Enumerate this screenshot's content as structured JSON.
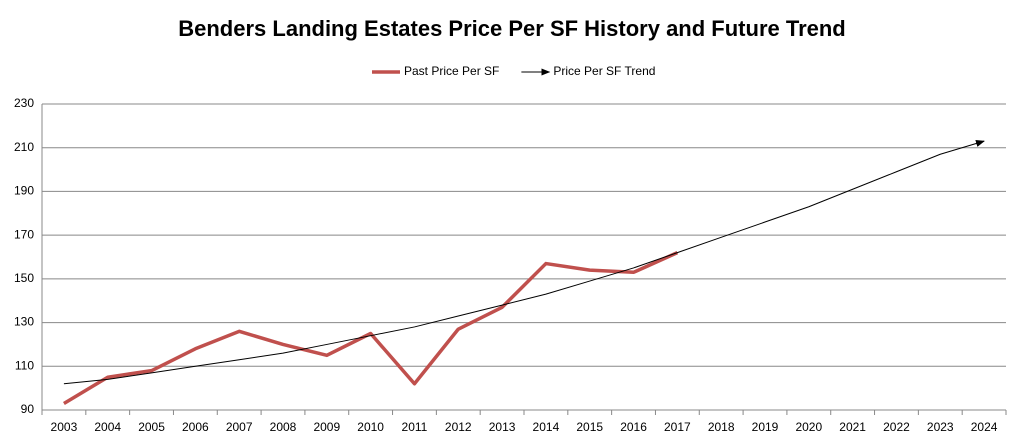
{
  "chart_data": {
    "type": "line",
    "title": "Benders Landing Estates Price Per SF History and Future Trend",
    "categories": [
      "2003",
      "2004",
      "2005",
      "2006",
      "2007",
      "2008",
      "2009",
      "2010",
      "2011",
      "2012",
      "2013",
      "2014",
      "2015",
      "2016",
      "2017",
      "2018",
      "2019",
      "2020",
      "2021",
      "2022",
      "2023",
      "2024"
    ],
    "series": [
      {
        "name": "Past Price Per SF",
        "color": "#c0504d",
        "values": [
          93,
          105,
          108,
          118,
          126,
          120,
          115,
          125,
          102,
          127,
          137,
          157,
          154,
          153,
          162,
          null,
          null,
          null,
          null,
          null,
          null,
          null
        ]
      },
      {
        "name": "Price Per SF Trend",
        "color": "#000000",
        "arrow": true,
        "values": [
          102,
          104,
          107,
          110,
          113,
          116,
          120,
          124,
          128,
          133,
          138,
          143,
          149,
          155,
          162,
          169,
          176,
          183,
          191,
          199,
          207,
          213
        ]
      }
    ],
    "ylim": [
      90,
      230
    ],
    "yticks": [
      90,
      110,
      130,
      150,
      170,
      190,
      210,
      230
    ],
    "grid": true,
    "legend": "top"
  }
}
